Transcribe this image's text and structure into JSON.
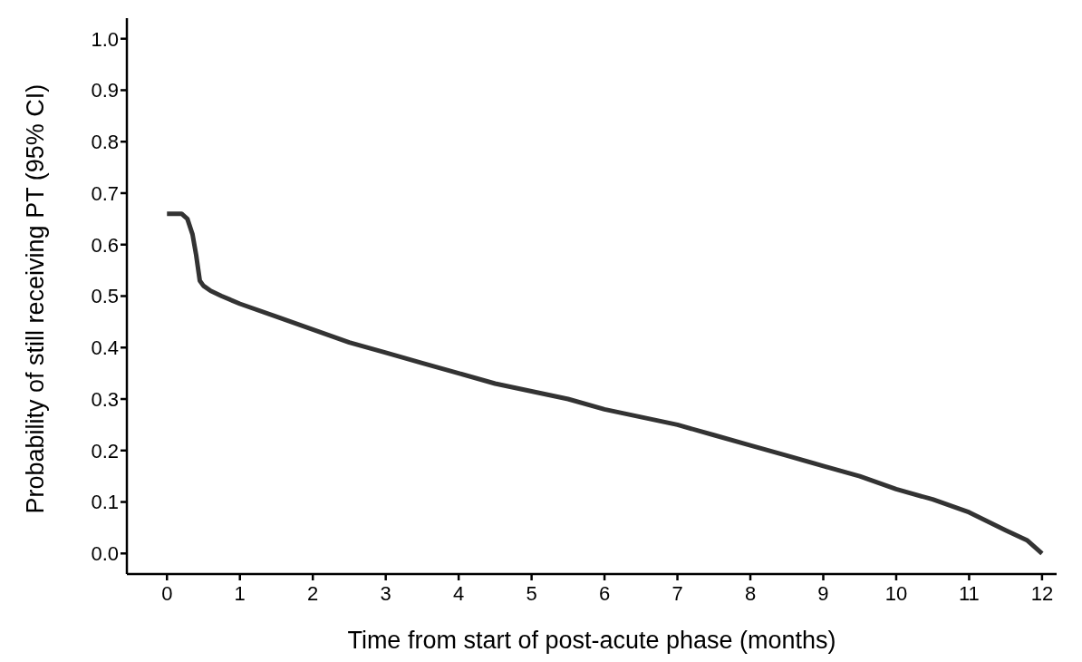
{
  "chart_data": {
    "type": "line",
    "xlabel": "Time from start of post-acute phase (months)",
    "ylabel": "Probability of still receiving PT (95% CI)",
    "xlim": [
      -0.55,
      12.2
    ],
    "ylim": [
      -0.04,
      1.04
    ],
    "xticks": [
      0,
      1,
      2,
      3,
      4,
      5,
      6,
      7,
      8,
      9,
      10,
      11,
      12
    ],
    "yticks": [
      {
        "value": 0,
        "label": "0.0"
      },
      0.1,
      0.2,
      0.3,
      0.4,
      0.5,
      0.6,
      0.7,
      0.8,
      0.9,
      {
        "value": 1,
        "label": "1.0"
      }
    ],
    "grid": false,
    "marker": "none",
    "line_style": "solid",
    "series": [
      {
        "color": "#333333",
        "x": [
          0,
          0.2,
          0.28,
          0.35,
          0.4,
          0.45,
          0.5,
          0.6,
          0.75,
          1,
          1.5,
          2,
          2.5,
          3,
          3.5,
          4,
          4.5,
          5,
          5.5,
          6,
          6.5,
          7,
          7.5,
          8,
          8.5,
          9,
          9.5,
          10,
          10.5,
          11,
          11.5,
          11.8,
          12
        ],
        "values": [
          0.66,
          0.66,
          0.65,
          0.62,
          0.58,
          0.53,
          0.52,
          0.51,
          0.5,
          0.485,
          0.46,
          0.435,
          0.41,
          0.39,
          0.37,
          0.35,
          0.33,
          0.315,
          0.3,
          0.28,
          0.265,
          0.25,
          0.23,
          0.21,
          0.19,
          0.17,
          0.15,
          0.125,
          0.105,
          0.08,
          0.045,
          0.025,
          0.0
        ]
      }
    ]
  }
}
